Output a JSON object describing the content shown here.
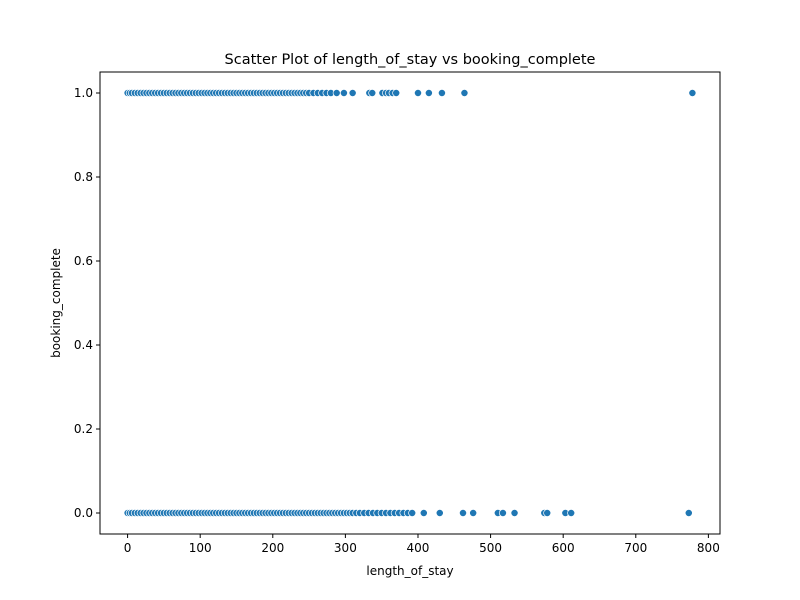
{
  "chart_data": {
    "type": "scatter",
    "title": "Scatter Plot of length_of_stay vs booking_complete",
    "xlabel": "length_of_stay",
    "ylabel": "booking_complete",
    "xlim": [
      -38,
      816
    ],
    "ylim": [
      -0.05,
      1.05
    ],
    "xticks": [
      0,
      100,
      200,
      300,
      400,
      500,
      600,
      700,
      800
    ],
    "yticks": [
      0.0,
      0.2,
      0.4,
      0.6,
      0.8,
      1.0
    ],
    "xtick_labels": [
      "0",
      "100",
      "200",
      "300",
      "400",
      "500",
      "600",
      "700",
      "800"
    ],
    "ytick_labels": [
      "0.0",
      "0.2",
      "0.4",
      "0.6",
      "0.8",
      "1.0"
    ],
    "grid": false,
    "marker_color": "#1f77b4",
    "series": [
      {
        "y": 1,
        "x": [
          0,
          3,
          6,
          10,
          14,
          18,
          22,
          26,
          30,
          34,
          38,
          42,
          46,
          50,
          54,
          58,
          62,
          66,
          70,
          74,
          78,
          82,
          86,
          90,
          94,
          98,
          102,
          106,
          110,
          114,
          118,
          122,
          126,
          130,
          134,
          138,
          142,
          146,
          150,
          154,
          158,
          162,
          166,
          170,
          174,
          178,
          182,
          186,
          190,
          194,
          198,
          202,
          206,
          210,
          214,
          218,
          222,
          226,
          230,
          234,
          238,
          242,
          246,
          250,
          256,
          262,
          268,
          274,
          280,
          288,
          298,
          310,
          333,
          337,
          351,
          356,
          360,
          365,
          370,
          400,
          415,
          433,
          464,
          778
        ]
      },
      {
        "y": 0,
        "x": [
          0,
          3,
          6,
          10,
          14,
          18,
          22,
          26,
          30,
          34,
          38,
          42,
          46,
          50,
          54,
          58,
          62,
          66,
          70,
          74,
          78,
          82,
          86,
          90,
          94,
          98,
          102,
          106,
          110,
          114,
          118,
          122,
          126,
          130,
          134,
          138,
          142,
          146,
          150,
          154,
          158,
          162,
          166,
          170,
          174,
          178,
          182,
          186,
          190,
          194,
          198,
          202,
          206,
          210,
          214,
          218,
          222,
          226,
          230,
          234,
          238,
          242,
          246,
          250,
          254,
          258,
          262,
          266,
          270,
          274,
          278,
          282,
          286,
          290,
          294,
          298,
          302,
          306,
          310,
          315,
          320,
          326,
          332,
          338,
          344,
          350,
          356,
          362,
          368,
          374,
          380,
          386,
          392,
          408,
          430,
          462,
          476,
          510,
          517,
          533,
          574,
          578,
          603,
          611,
          773
        ]
      }
    ]
  }
}
